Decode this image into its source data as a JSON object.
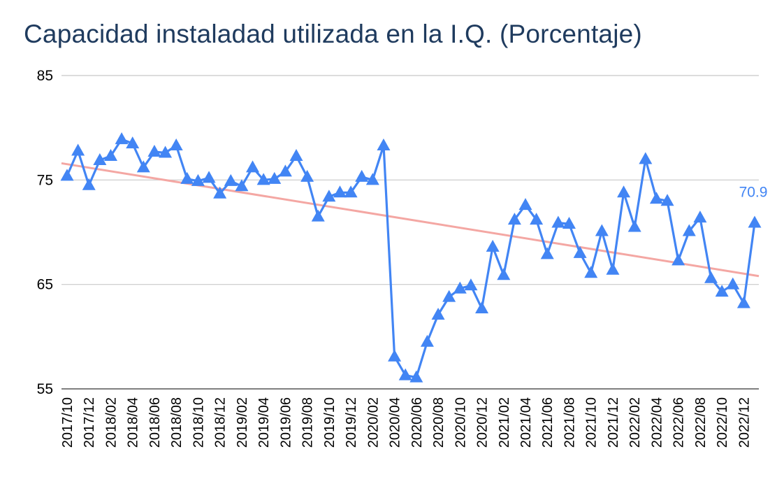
{
  "chart_data": {
    "type": "line",
    "title": "Capacidad instaladad utilizada en la I.Q. (Porcentaje)",
    "xlabel": "",
    "ylabel": "",
    "ylim": [
      55,
      85
    ],
    "yticks": [
      55,
      65,
      75,
      85
    ],
    "grid": true,
    "legend": "none",
    "x_tick_labels": [
      "2017/10",
      "2017/12",
      "2018/02",
      "2018/04",
      "2018/06",
      "2018/08",
      "2018/10",
      "2018/12",
      "2019/02",
      "2019/04",
      "2019/06",
      "2019/08",
      "2019/10",
      "2019/12",
      "2020/02",
      "2020/04",
      "2020/06",
      "2020/08",
      "2020/10",
      "2020/12",
      "2021/02",
      "2021/04",
      "2021/06",
      "2021/08",
      "2021/10",
      "2021/12",
      "2022/02",
      "2022/04",
      "2022/06",
      "2022/08",
      "2022/10",
      "2022/12"
    ],
    "x": [
      "2017/10",
      "2017/11",
      "2017/12",
      "2018/01",
      "2018/02",
      "2018/03",
      "2018/04",
      "2018/05",
      "2018/06",
      "2018/07",
      "2018/08",
      "2018/09",
      "2018/10",
      "2018/11",
      "2018/12",
      "2019/01",
      "2019/02",
      "2019/03",
      "2019/04",
      "2019/05",
      "2019/06",
      "2019/07",
      "2019/08",
      "2019/09",
      "2019/10",
      "2019/11",
      "2019/12",
      "2020/01",
      "2020/02",
      "2020/03",
      "2020/04",
      "2020/05",
      "2020/06",
      "2020/07",
      "2020/08",
      "2020/09",
      "2020/10",
      "2020/11",
      "2020/12",
      "2021/01",
      "2021/02",
      "2021/03",
      "2021/04",
      "2021/05",
      "2021/06",
      "2021/07",
      "2021/08",
      "2021/09",
      "2021/10",
      "2021/11",
      "2021/12",
      "2022/01",
      "2022/02",
      "2022/03",
      "2022/04",
      "2022/05",
      "2022/06",
      "2022/07",
      "2022/08",
      "2022/09",
      "2022/10",
      "2022/11",
      "2022/12",
      "2023/01"
    ],
    "series": [
      {
        "name": "",
        "color": "#4285f4",
        "marker": "triangle",
        "values": [
          75.4,
          77.8,
          74.5,
          76.9,
          77.3,
          78.9,
          78.5,
          76.2,
          77.7,
          77.6,
          78.3,
          75.1,
          74.9,
          75.2,
          73.7,
          74.9,
          74.4,
          76.2,
          75.0,
          75.1,
          75.8,
          77.3,
          75.3,
          71.5,
          73.4,
          73.8,
          73.8,
          75.3,
          75.0,
          78.3,
          58.1,
          56.3,
          56.1,
          59.5,
          62.1,
          63.8,
          64.6,
          64.9,
          62.7,
          68.6,
          65.9,
          71.2,
          72.6,
          71.2,
          67.9,
          70.9,
          70.8,
          68.0,
          66.1,
          70.1,
          66.4,
          73.8,
          70.5,
          77.0,
          73.2,
          73.0,
          67.3,
          70.1,
          71.4,
          65.6,
          64.3,
          65.0,
          63.2,
          70.9
        ]
      }
    ],
    "trendline": {
      "color": "#f4a7a3",
      "start": 76.6,
      "end": 65.8
    },
    "data_labels": [
      {
        "index": 63,
        "text": "70.9",
        "color": "#4285f4"
      }
    ]
  }
}
